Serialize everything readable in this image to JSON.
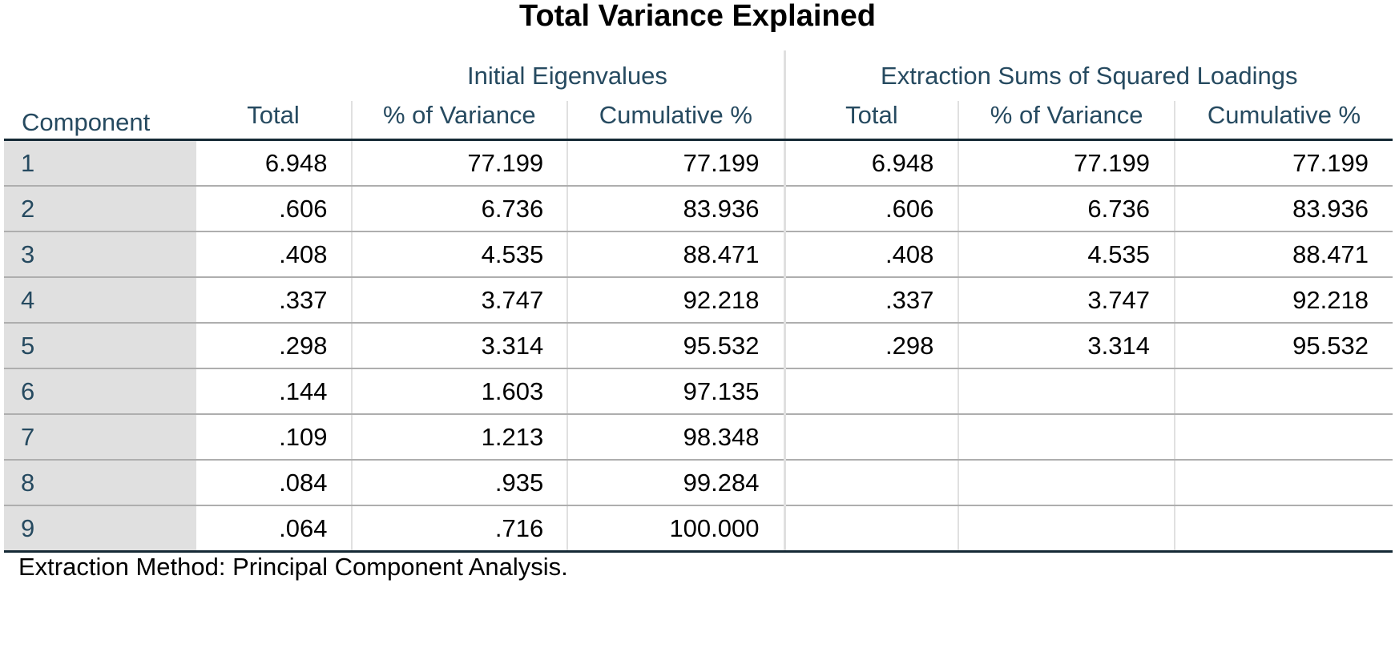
{
  "title": "Total Variance Explained",
  "table": {
    "row_header": "Component",
    "groups": [
      {
        "label": "Initial Eigenvalues"
      },
      {
        "label": "Extraction Sums of Squared Loadings"
      }
    ],
    "sub_headers": [
      "Total",
      "% of Variance",
      "Cumulative %",
      "Total",
      "% of Variance",
      "Cumulative %"
    ],
    "rows": [
      {
        "component": "1",
        "cells": [
          "6.948",
          "77.199",
          "77.199",
          "6.948",
          "77.199",
          "77.199"
        ]
      },
      {
        "component": "2",
        "cells": [
          ".606",
          "6.736",
          "83.936",
          ".606",
          "6.736",
          "83.936"
        ]
      },
      {
        "component": "3",
        "cells": [
          ".408",
          "4.535",
          "88.471",
          ".408",
          "4.535",
          "88.471"
        ]
      },
      {
        "component": "4",
        "cells": [
          ".337",
          "3.747",
          "92.218",
          ".337",
          "3.747",
          "92.218"
        ]
      },
      {
        "component": "5",
        "cells": [
          ".298",
          "3.314",
          "95.532",
          ".298",
          "3.314",
          "95.532"
        ]
      },
      {
        "component": "6",
        "cells": [
          ".144",
          "1.603",
          "97.135",
          "",
          "",
          ""
        ]
      },
      {
        "component": "7",
        "cells": [
          ".109",
          "1.213",
          "98.348",
          "",
          "",
          ""
        ]
      },
      {
        "component": "8",
        "cells": [
          ".084",
          ".935",
          "99.284",
          "",
          "",
          ""
        ]
      },
      {
        "component": "9",
        "cells": [
          ".064",
          ".716",
          "100.000",
          "",
          "",
          ""
        ]
      }
    ]
  },
  "footnote": "Extraction Method: Principal Component Analysis."
}
